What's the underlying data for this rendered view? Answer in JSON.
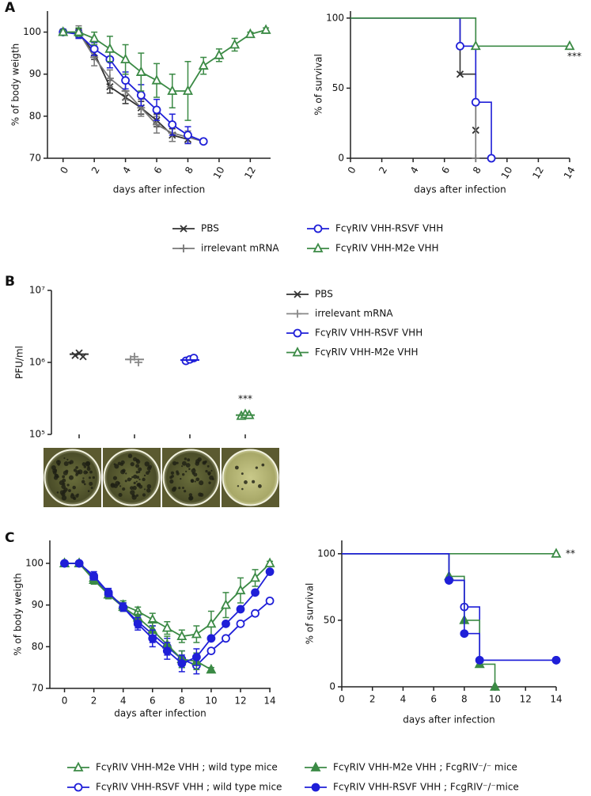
{
  "chart_data": [
    {
      "type": "line",
      "panel": "A",
      "ylabel": "% of body weigth",
      "xlabel": "days after infection",
      "xlim": [
        -1,
        13.3
      ],
      "xticks": [
        0,
        2,
        4,
        6,
        8,
        10,
        12
      ],
      "ylim": [
        70,
        105
      ],
      "yticks": [
        70,
        80,
        90,
        100
      ],
      "x": [
        0,
        1,
        2,
        3,
        4,
        5,
        6,
        7,
        8,
        9,
        10,
        11,
        12,
        13
      ],
      "legend": "bottom",
      "series": [
        {
          "name": "PBS",
          "color": "#333333",
          "marker": "x",
          "filled": false,
          "values": [
            100,
            99.8,
            95,
            87,
            84.5,
            82,
            79,
            75.5,
            74.5,
            null,
            null,
            null,
            null,
            null
          ],
          "errors": [
            0.5,
            1,
            1.5,
            1.5,
            1.5,
            1.5,
            1.5,
            1.5,
            1,
            null,
            null,
            null,
            null,
            null
          ]
        },
        {
          "name": "irrelevant mRNA",
          "color": "#777777",
          "marker": "plus",
          "filled": false,
          "values": [
            100,
            100,
            94,
            89,
            86,
            82,
            78,
            76,
            75,
            74,
            null,
            null,
            null,
            null
          ],
          "errors": [
            0.5,
            1.5,
            2,
            2,
            2,
            2,
            2,
            2,
            1.5,
            0.5,
            null,
            null,
            null,
            null
          ]
        },
        {
          "name": "FcγRIV VHH-RSVF VHH",
          "color": "#1f1fd8",
          "marker": "circle",
          "filled": false,
          "values": [
            100,
            99.5,
            96,
            93.5,
            88.5,
            85,
            81.5,
            78,
            75.5,
            74,
            null,
            null,
            null,
            null
          ],
          "errors": [
            0.5,
            1,
            1.5,
            2,
            2,
            2.5,
            2.5,
            2.5,
            2,
            0.5,
            null,
            null,
            null,
            null
          ]
        },
        {
          "name": "FcγRIV VHH-M2e VHH",
          "color": "#3b8a45",
          "marker": "triangle",
          "filled": false,
          "values": [
            100,
            100,
            98.5,
            96,
            93.5,
            90.5,
            88.5,
            86,
            86,
            92,
            94.5,
            97,
            99.5,
            100.5
          ],
          "errors": [
            0.5,
            1,
            1.5,
            3,
            3.5,
            4.5,
            4,
            4,
            7,
            2,
            1.5,
            1.5,
            0.5,
            0.5
          ]
        }
      ]
    },
    {
      "type": "step",
      "ylabel": "% of survival",
      "xlabel": "days after infection",
      "xlim": [
        0,
        14
      ],
      "xticks": [
        0,
        2,
        4,
        6,
        8,
        10,
        12,
        14
      ],
      "ylim": [
        0,
        105
      ],
      "yticks": [
        0,
        50,
        100
      ],
      "annotation": "***",
      "series": [
        {
          "color": "#333333",
          "marker": "x",
          "filled": false,
          "x": [
            0,
            7,
            8
          ],
          "values": [
            100,
            60,
            20
          ]
        },
        {
          "color": "#777777",
          "marker": "plus",
          "filled": false,
          "x": [
            0,
            8
          ],
          "values": [
            100,
            0
          ]
        },
        {
          "color": "#1f1fd8",
          "marker": "circle",
          "filled": false,
          "x": [
            0,
            7,
            8,
            9
          ],
          "values": [
            100,
            80,
            40,
            0
          ]
        },
        {
          "color": "#3b8a45",
          "marker": "triangle",
          "filled": false,
          "x": [
            0,
            8,
            14
          ],
          "values": [
            100,
            80,
            80
          ]
        }
      ]
    },
    {
      "type": "dot",
      "panel": "B",
      "ylabel": "PFU/ml",
      "log": true,
      "ylim": [
        100000,
        10000000
      ],
      "yticks": [
        {
          "value": 100000,
          "label": "10⁵"
        },
        {
          "value": 1000000,
          "label": "10⁶"
        },
        {
          "value": 10000000,
          "label": "10⁷"
        }
      ],
      "annotation": "***",
      "legend": "right",
      "series": [
        {
          "name": "PBS",
          "color": "#333333",
          "marker": "x",
          "filled": false,
          "values": [
            1250000,
            1350000,
            1200000
          ],
          "mean": 1300000
        },
        {
          "name": "irrelevant mRNA",
          "color": "#888888",
          "marker": "plus",
          "filled": false,
          "values": [
            1100000,
            1200000,
            1000000
          ],
          "mean": 1100000
        },
        {
          "name": "FcγRIV VHH-RSVF VHH",
          "color": "#1f1fd8",
          "marker": "circle",
          "filled": false,
          "values": [
            1050000,
            1100000,
            1150000
          ],
          "mean": 1080000
        },
        {
          "name": "FcγRIV VHH-M2e VHH",
          "color": "#3b8a45",
          "marker": "triangle",
          "filled": false,
          "values": [
            180000,
            190000,
            185000
          ],
          "mean": 185000
        }
      ]
    },
    {
      "type": "line",
      "panel": "C",
      "ylabel": "% of body weigth",
      "xlabel": "days after infection",
      "xlim": [
        -1,
        14.05
      ],
      "xticks": [
        0,
        2,
        4,
        6,
        8,
        10,
        12,
        14
      ],
      "ylim": [
        70,
        105.5
      ],
      "yticks": [
        70,
        80,
        90,
        100
      ],
      "x": [
        0,
        1,
        2,
        3,
        4,
        5,
        6,
        7,
        8,
        9,
        10,
        11,
        12,
        13,
        14
      ],
      "legend": "bottom",
      "series": [
        {
          "name": "FcγRIV VHH-M2e VHH ; wild type mice",
          "color": "#3b8a45",
          "marker": "triangle",
          "filled": false,
          "values": [
            100,
            100,
            96.5,
            92.5,
            90,
            88.5,
            86.5,
            84.5,
            82.5,
            83,
            85.5,
            90,
            93.5,
            96.5,
            100
          ],
          "errors": [
            0.5,
            0.5,
            1,
            1,
            1,
            1,
            1.5,
            1.5,
            1.5,
            2,
            3,
            3,
            3,
            2,
            0.5
          ]
        },
        {
          "name": "FcγRIV VHH-RSVF VHH ; wild type mice",
          "color": "#1f1fd8",
          "marker": "circle",
          "filled": false,
          "values": [
            100,
            100,
            96.5,
            92.5,
            89.5,
            86,
            83,
            80,
            77,
            75.5,
            79,
            82,
            85.5,
            88,
            91
          ],
          "errors": [
            0.5,
            0.5,
            1,
            1,
            1,
            1.5,
            2,
            2,
            2,
            2,
            0.5,
            0.5,
            0.5,
            0.5,
            0.5
          ]
        },
        {
          "name": "FcγRIV VHH-M2e VHH  ; FcgRIV⁻/⁻ mice",
          "color": "#3b8a45",
          "marker": "triangle",
          "filled": true,
          "values": [
            100,
            100,
            96,
            92.5,
            89.5,
            87,
            84,
            80.5,
            77,
            76.5,
            74.5,
            null,
            null,
            null,
            null
          ],
          "errors": [
            0.5,
            0.5,
            1,
            1,
            1,
            1.5,
            2,
            2,
            2,
            2,
            0.5,
            null,
            null,
            null,
            null
          ]
        },
        {
          "name": "FcγRIV VHH-RSVF VHH ; FcgRIV⁻/⁻mice",
          "color": "#1f1fd8",
          "marker": "circle",
          "filled": true,
          "values": [
            100,
            100,
            97,
            93,
            89.5,
            85.5,
            82,
            79,
            76,
            77.5,
            82,
            85.5,
            89,
            93,
            98
          ],
          "errors": [
            0.5,
            0.5,
            1,
            1,
            1,
            1.5,
            2,
            2,
            2,
            2,
            0.5,
            0.5,
            0.5,
            0.5,
            0.5
          ]
        }
      ]
    },
    {
      "type": "step",
      "ylabel": "% of survival",
      "xlabel": "days after infection",
      "xlim": [
        0,
        14
      ],
      "xticks": [
        0,
        2,
        4,
        6,
        8,
        10,
        12,
        14
      ],
      "ylim": [
        0,
        110
      ],
      "yticks": [
        0,
        50,
        100
      ],
      "annotation": "**",
      "series": [
        {
          "color": "#3b8a45",
          "marker": "triangle",
          "filled": false,
          "x": [
            0,
            14
          ],
          "values": [
            100,
            100
          ]
        },
        {
          "color": "#1f1fd8",
          "marker": "circle",
          "filled": false,
          "x": [
            0,
            7,
            8,
            9,
            14
          ],
          "values": [
            100,
            80,
            60,
            20,
            20
          ]
        },
        {
          "color": "#3b8a45",
          "marker": "triangle",
          "filled": true,
          "x": [
            0,
            7,
            8,
            9,
            10
          ],
          "values": [
            100,
            83,
            50,
            17,
            0
          ]
        },
        {
          "color": "#1f1fd8",
          "marker": "circle",
          "filled": true,
          "x": [
            0,
            7,
            8,
            9,
            14
          ],
          "values": [
            100,
            80,
            40,
            20,
            20
          ]
        }
      ]
    }
  ]
}
